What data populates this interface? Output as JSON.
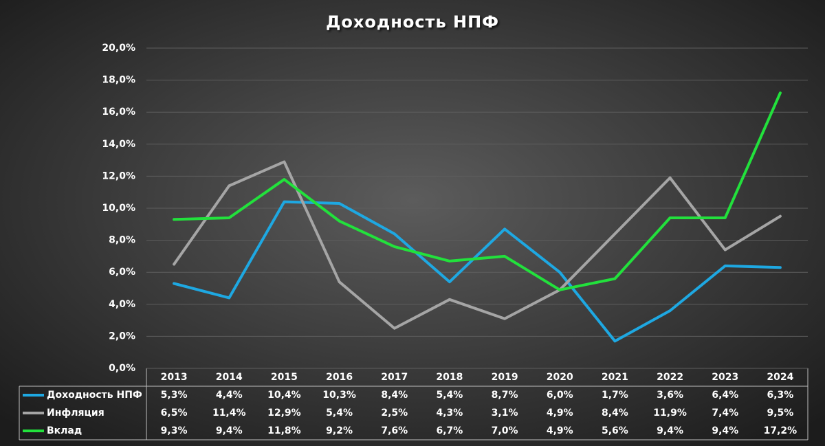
{
  "chart_data": {
    "type": "line",
    "title": "Доходность НПФ",
    "categories": [
      "2013",
      "2014",
      "2015",
      "2016",
      "2017",
      "2018",
      "2019",
      "2020",
      "2021",
      "2022",
      "2023",
      "2024"
    ],
    "series": [
      {
        "name": "Доходность НПФ",
        "color": "#1ea8e2",
        "values": [
          5.3,
          4.4,
          10.4,
          10.3,
          8.4,
          5.4,
          8.7,
          6.0,
          1.7,
          3.6,
          6.4,
          6.3
        ],
        "value_labels": [
          "5,3%",
          "4,4%",
          "10,4%",
          "10,3%",
          "8,4%",
          "5,4%",
          "8,7%",
          "6,0%",
          "1,7%",
          "3,6%",
          "6,4%",
          "6,3%"
        ]
      },
      {
        "name": "Инфляция",
        "color": "#a5a5a5",
        "values": [
          6.5,
          11.4,
          12.9,
          5.4,
          2.5,
          4.3,
          3.1,
          4.9,
          8.4,
          11.9,
          7.4,
          9.5
        ],
        "value_labels": [
          "6,5%",
          "11,4%",
          "12,9%",
          "5,4%",
          "2,5%",
          "4,3%",
          "3,1%",
          "4,9%",
          "8,4%",
          "11,9%",
          "7,4%",
          "9,5%"
        ]
      },
      {
        "name": "Вклад",
        "color": "#22e13c",
        "values": [
          9.3,
          9.4,
          11.8,
          9.2,
          7.6,
          6.7,
          7.0,
          4.9,
          5.6,
          9.4,
          9.4,
          17.2
        ],
        "value_labels": [
          "9,3%",
          "9,4%",
          "11,8%",
          "9,2%",
          "7,6%",
          "6,7%",
          "7,0%",
          "4,9%",
          "5,6%",
          "9,4%",
          "9,4%",
          "17,2%"
        ]
      }
    ],
    "ylim": [
      0,
      20
    ],
    "yticks": [
      {
        "value": 0,
        "label": "0,0%"
      },
      {
        "value": 2,
        "label": "2,0%"
      },
      {
        "value": 4,
        "label": "4,0%"
      },
      {
        "value": 6,
        "label": "6,0%"
      },
      {
        "value": 8,
        "label": "8,0%"
      },
      {
        "value": 10,
        "label": "10,0%"
      },
      {
        "value": 12,
        "label": "12,0%"
      },
      {
        "value": 14,
        "label": "14,0%"
      },
      {
        "value": 16,
        "label": "16,0%"
      },
      {
        "value": 18,
        "label": "18,0%"
      },
      {
        "value": 20,
        "label": "20,0%"
      }
    ],
    "grid": true
  }
}
